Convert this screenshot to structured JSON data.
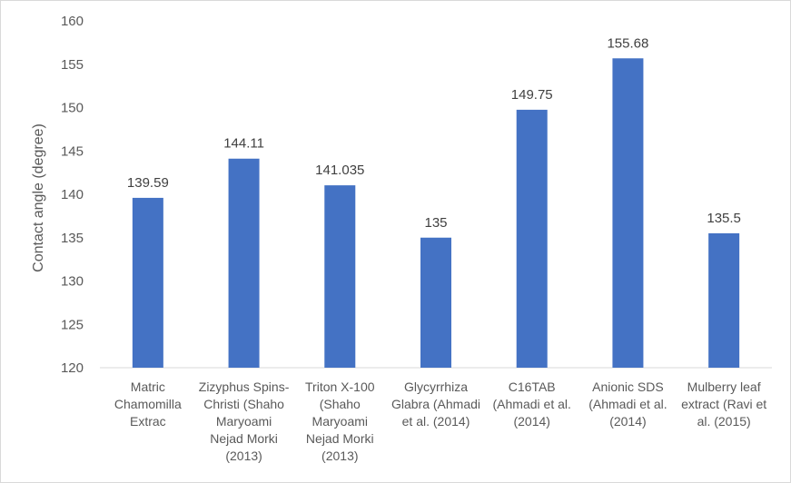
{
  "chart_data": {
    "type": "bar",
    "title": "",
    "xlabel": "",
    "ylabel": "Contact angle (degree)",
    "ylim": [
      120,
      160
    ],
    "yticks": [
      120,
      125,
      130,
      135,
      140,
      145,
      150,
      155,
      160
    ],
    "grid": false,
    "legend": "none",
    "bar_color": "#4472C4",
    "categories": [
      [
        "Matric",
        "Chamomilla",
        "Extrac"
      ],
      [
        "Zizyphus Spins-",
        "Christi (Shaho",
        "Maryoami",
        "Nejad Morki",
        "(2013)"
      ],
      [
        "Triton X-100",
        "(Shaho",
        "Maryoami",
        "Nejad Morki",
        "(2013)"
      ],
      [
        "Glycyrrhiza",
        "Glabra (Ahmadi",
        "et al. (2014)"
      ],
      [
        "C16TAB",
        "(Ahmadi et al.",
        "(2014)"
      ],
      [
        "Anionic SDS",
        "(Ahmadi et al.",
        "(2014)"
      ],
      [
        "Mulberry leaf",
        "extract (Ravi et",
        "al. (2015)"
      ]
    ],
    "values": [
      139.59,
      144.11,
      141.035,
      135,
      149.75,
      155.68,
      135.5
    ],
    "data_labels": [
      "139.59",
      "144.11",
      "141.035",
      "135",
      "149.75",
      "155.68",
      "135.5"
    ]
  }
}
